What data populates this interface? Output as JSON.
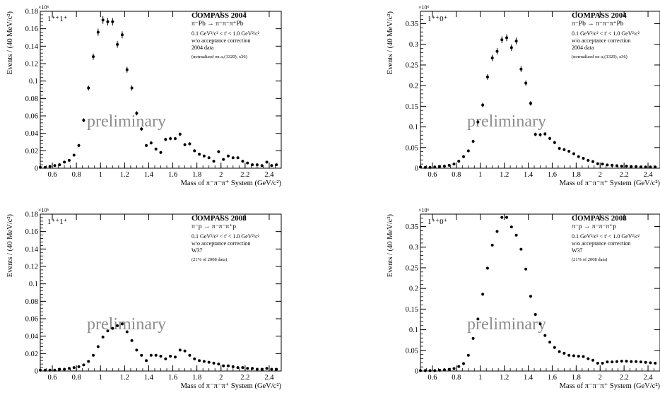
{
  "watermark": "preliminary",
  "chart_data": [
    {
      "type": "scatter",
      "panel": "top-left",
      "wave_label": "1⁺⁺1⁺",
      "experiment": "COMPASS 2004",
      "reaction": "π⁻Pb → π⁻π⁻π⁺Pb",
      "notes": [
        "0.1 GeV²/c² < t' < 1.0 GeV²/c²",
        "w/o acceptance correction",
        "2004 data"
      ],
      "norm_note": "(normalized on a₂(1320), x36)",
      "xlabel": "Mass of π⁻π⁻π⁺ System (GeV/c²)",
      "ylabel": "Events / (40 MeV/c²)",
      "y_exponent": "×10⁶",
      "xlim": [
        0.5,
        2.5
      ],
      "ylim": [
        0,
        0.18
      ],
      "xticks": [
        "0.6",
        "0.8",
        "1",
        "1.2",
        "1.4",
        "1.6",
        "1.8",
        "2",
        "2.2",
        "2.4"
      ],
      "yticks": [
        "0",
        "0.02",
        "0.04",
        "0.06",
        "0.08",
        "0.1",
        "0.12",
        "0.14",
        "0.16",
        "0.18"
      ],
      "x": [
        0.5,
        0.54,
        0.58,
        0.62,
        0.66,
        0.7,
        0.74,
        0.78,
        0.82,
        0.86,
        0.9,
        0.94,
        0.98,
        1.02,
        1.06,
        1.1,
        1.14,
        1.18,
        1.22,
        1.26,
        1.3,
        1.34,
        1.38,
        1.42,
        1.46,
        1.5,
        1.54,
        1.58,
        1.62,
        1.66,
        1.7,
        1.74,
        1.78,
        1.82,
        1.86,
        1.9,
        1.94,
        1.98,
        2.02,
        2.06,
        2.1,
        2.14,
        2.18,
        2.22,
        2.26,
        2.3,
        2.34,
        2.38,
        2.42,
        2.46
      ],
      "y": [
        0.001,
        0.001,
        0.002,
        0.003,
        0.004,
        0.007,
        0.009,
        0.015,
        0.026,
        0.055,
        0.092,
        0.128,
        0.156,
        0.17,
        0.168,
        0.168,
        0.142,
        0.153,
        0.113,
        0.092,
        0.063,
        0.045,
        0.026,
        0.029,
        0.022,
        0.018,
        0.033,
        0.034,
        0.034,
        0.039,
        0.027,
        0.028,
        0.02,
        0.016,
        0.014,
        0.012,
        0.008,
        0.019,
        0.01,
        0.014,
        0.012,
        0.012,
        0.008,
        0.006,
        0.004,
        0.004,
        0.003,
        0.007,
        0.003,
        0.004
      ],
      "errorbars": true
    },
    {
      "type": "scatter",
      "panel": "top-right",
      "wave_label": "1⁺⁺0⁺",
      "experiment": "COMPASS 2004",
      "reaction": "π⁻Pb → π⁻π⁻π⁺Pb",
      "notes": [
        "0.1 GeV²/c² < t' < 1.0 GeV²/c²",
        "w/o acceptance correction",
        "2004 data"
      ],
      "norm_note": "(normalized on a₂(1320), x36)",
      "xlabel": "Mass of π⁻π⁻π⁺ System (GeV/c²)",
      "ylabel": "Events / (40 MeV/c²)",
      "y_exponent": "×10⁶",
      "xlim": [
        0.5,
        2.5
      ],
      "ylim": [
        0,
        0.38
      ],
      "xticks": [
        "0.6",
        "0.8",
        "1",
        "1.2",
        "1.4",
        "1.6",
        "1.8",
        "2",
        "2.2",
        "2.4"
      ],
      "yticks": [
        "0",
        "0.05",
        "0.1",
        "0.15",
        "0.2",
        "0.25",
        "0.3",
        "0.35"
      ],
      "x": [
        0.5,
        0.54,
        0.58,
        0.62,
        0.66,
        0.7,
        0.74,
        0.78,
        0.82,
        0.86,
        0.9,
        0.94,
        0.98,
        1.02,
        1.06,
        1.1,
        1.14,
        1.18,
        1.22,
        1.26,
        1.3,
        1.34,
        1.38,
        1.42,
        1.46,
        1.5,
        1.54,
        1.58,
        1.62,
        1.66,
        1.7,
        1.74,
        1.78,
        1.82,
        1.86,
        1.9,
        1.94,
        1.98,
        2.02,
        2.06,
        2.1,
        2.14,
        2.18,
        2.22,
        2.26,
        2.3,
        2.34,
        2.38,
        2.42,
        2.46
      ],
      "y": [
        0.003,
        0.002,
        0.002,
        0.003,
        0.004,
        0.005,
        0.007,
        0.01,
        0.017,
        0.028,
        0.042,
        0.065,
        0.112,
        0.153,
        0.221,
        0.267,
        0.283,
        0.311,
        0.316,
        0.292,
        0.308,
        0.24,
        0.206,
        0.157,
        0.082,
        0.081,
        0.083,
        0.072,
        0.062,
        0.048,
        0.045,
        0.041,
        0.035,
        0.028,
        0.024,
        0.019,
        0.016,
        0.011,
        0.01,
        0.008,
        0.007,
        0.006,
        0.005,
        0.005,
        0.004,
        0.004,
        0.003,
        0.003,
        0.003,
        0.003
      ],
      "errorbars": true
    },
    {
      "type": "scatter",
      "panel": "bottom-left",
      "wave_label": "1⁺⁺1⁺",
      "experiment": "COMPASS 2008",
      "reaction": "π⁻p → π⁻π⁻π⁺p",
      "notes": [
        "0.1 GeV²/c² < t' < 1.0 GeV²/c²",
        "w/o acceptance correction",
        "W37"
      ],
      "norm_note": "(21% of 2008 data)",
      "xlabel": "Mass of π⁻π⁻π⁺ System (GeV/c²)",
      "ylabel": "Events / (40 MeV/c²)",
      "y_exponent": "×10⁶",
      "xlim": [
        0.5,
        2.5
      ],
      "ylim": [
        0,
        0.18
      ],
      "xticks": [
        "0.6",
        "0.8",
        "1",
        "1.2",
        "1.4",
        "1.6",
        "1.8",
        "2",
        "2.2",
        "2.4"
      ],
      "yticks": [
        "0",
        "0.02",
        "0.04",
        "0.06",
        "0.08",
        "0.1",
        "0.12",
        "0.14",
        "0.16",
        "0.18"
      ],
      "x": [
        0.5,
        0.54,
        0.58,
        0.62,
        0.66,
        0.7,
        0.74,
        0.78,
        0.82,
        0.86,
        0.9,
        0.94,
        0.98,
        1.02,
        1.06,
        1.1,
        1.14,
        1.18,
        1.22,
        1.26,
        1.3,
        1.34,
        1.38,
        1.42,
        1.46,
        1.5,
        1.54,
        1.58,
        1.62,
        1.66,
        1.7,
        1.74,
        1.78,
        1.82,
        1.86,
        1.9,
        1.94,
        1.98,
        2.02,
        2.06,
        2.1,
        2.14,
        2.18,
        2.22,
        2.26,
        2.3,
        2.34,
        2.38,
        2.42,
        2.46
      ],
      "y": [
        0.001,
        0.001,
        0.001,
        0.001,
        0.002,
        0.002,
        0.003,
        0.004,
        0.005,
        0.007,
        0.011,
        0.018,
        0.028,
        0.039,
        0.046,
        0.049,
        0.052,
        0.054,
        0.045,
        0.035,
        0.024,
        0.018,
        0.012,
        0.018,
        0.018,
        0.017,
        0.014,
        0.017,
        0.016,
        0.024,
        0.023,
        0.018,
        0.014,
        0.012,
        0.011,
        0.01,
        0.009,
        0.008,
        0.006,
        0.006,
        0.005,
        0.004,
        0.004,
        0.003,
        0.003,
        0.002,
        0.002,
        0.003,
        0.002,
        0.002
      ],
      "errorbars": false
    },
    {
      "type": "scatter",
      "panel": "bottom-right",
      "wave_label": "1⁺⁺0⁺",
      "experiment": "COMPASS 2008",
      "reaction": "π⁻p → π⁻π⁻π⁺p",
      "notes": [
        "0.1 GeV²/c² < t' < 1.0 GeV²/c²",
        "w/o acceptance correction",
        "W37"
      ],
      "norm_note": "(21% of 2008 data)",
      "xlabel": "Mass of π⁻π⁻π⁺ System (GeV/c²)",
      "ylabel": "Events / (40 MeV/c²)",
      "y_exponent": "×10⁶",
      "xlim": [
        0.5,
        2.5
      ],
      "ylim": [
        0,
        0.38
      ],
      "xticks": [
        "0.6",
        "0.8",
        "1",
        "1.2",
        "1.4",
        "1.6",
        "1.8",
        "2",
        "2.2",
        "2.4"
      ],
      "yticks": [
        "0",
        "0.05",
        "0.1",
        "0.15",
        "0.2",
        "0.25",
        "0.3",
        "0.35"
      ],
      "x": [
        0.5,
        0.54,
        0.58,
        0.62,
        0.66,
        0.7,
        0.74,
        0.78,
        0.82,
        0.86,
        0.9,
        0.94,
        0.98,
        1.02,
        1.06,
        1.1,
        1.14,
        1.18,
        1.22,
        1.26,
        1.3,
        1.34,
        1.38,
        1.42,
        1.46,
        1.5,
        1.54,
        1.58,
        1.62,
        1.66,
        1.7,
        1.74,
        1.78,
        1.82,
        1.86,
        1.9,
        1.94,
        1.98,
        2.02,
        2.06,
        2.1,
        2.14,
        2.18,
        2.22,
        2.26,
        2.3,
        2.34,
        2.38,
        2.42,
        2.46
      ],
      "y": [
        0.001,
        0.001,
        0.001,
        0.001,
        0.002,
        0.003,
        0.004,
        0.006,
        0.011,
        0.018,
        0.038,
        0.079,
        0.126,
        0.186,
        0.249,
        0.305,
        0.338,
        0.372,
        0.372,
        0.349,
        0.329,
        0.295,
        0.247,
        0.181,
        0.137,
        0.114,
        0.086,
        0.07,
        0.057,
        0.047,
        0.043,
        0.038,
        0.037,
        0.036,
        0.035,
        0.03,
        0.026,
        0.019,
        0.019,
        0.022,
        0.022,
        0.023,
        0.024,
        0.024,
        0.023,
        0.023,
        0.022,
        0.021,
        0.02,
        0.019
      ],
      "errorbars": false
    }
  ]
}
